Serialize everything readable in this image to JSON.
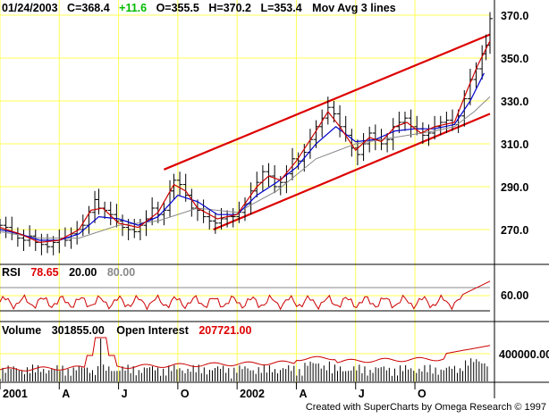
{
  "header": {
    "date": "01/24/2003",
    "close": "C=368.4",
    "change": "+11.6",
    "open": "O=355.5",
    "high": "H=370.2",
    "low": "L=353.4",
    "study": "Mov Avg 3 lines"
  },
  "rsi_header": {
    "label": "RSI",
    "value": "78.65",
    "lower": "20.00",
    "upper": "80.00"
  },
  "volume_header": {
    "vol_label": "Volume",
    "vol_value": "301855.00",
    "oi_label": "Open Interest",
    "oi_value": "207721.00"
  },
  "footer": "Created with SuperCharts by Omega Research © 1997",
  "colors": {
    "grid": "#ffff55",
    "price": "#000000",
    "ma_fast": "#cc0000",
    "ma_mid": "#0000cc",
    "ma_slow": "#888888",
    "channel": "#dd0000",
    "change_text": "#00bb00",
    "red_text": "#dd0000",
    "gray_text": "#888888"
  },
  "chart_data": {
    "type": "line",
    "x_ticks": [
      {
        "label": "2001",
        "month": 0
      },
      {
        "label": "A",
        "month": 3
      },
      {
        "label": "J",
        "month": 6
      },
      {
        "label": "O",
        "month": 9
      },
      {
        "label": "2002",
        "month": 12
      },
      {
        "label": "A",
        "month": 15
      },
      {
        "label": "J",
        "month": 18
      },
      {
        "label": "O",
        "month": 21
      }
    ],
    "x_range": [
      0,
      24.8
    ],
    "price": {
      "yticks": [
        {
          "label": "370.0",
          "value": 370
        },
        {
          "label": "350.0",
          "value": 350
        },
        {
          "label": "330.0",
          "value": 330
        },
        {
          "label": "310.0",
          "value": 310
        },
        {
          "label": "290.0",
          "value": 290
        },
        {
          "label": "270.0",
          "value": 270
        }
      ],
      "closes": [
        [
          0,
          272
        ],
        [
          0.3,
          271
        ],
        [
          0.6,
          268
        ],
        [
          0.9,
          266
        ],
        [
          1.2,
          265
        ],
        [
          1.5,
          267
        ],
        [
          1.8,
          264
        ],
        [
          2.1,
          263
        ],
        [
          2.4,
          262
        ],
        [
          2.7,
          264
        ],
        [
          3.0,
          266
        ],
        [
          3.3,
          265
        ],
        [
          3.6,
          268
        ],
        [
          3.9,
          270
        ],
        [
          4.2,
          272
        ],
        [
          4.5,
          278
        ],
        [
          4.8,
          284
        ],
        [
          5.0,
          280
        ],
        [
          5.3,
          279
        ],
        [
          5.6,
          277
        ],
        [
          5.9,
          274
        ],
        [
          6.2,
          271
        ],
        [
          6.5,
          270
        ],
        [
          6.8,
          269
        ],
        [
          7.1,
          272
        ],
        [
          7.4,
          275
        ],
        [
          7.7,
          280
        ],
        [
          8.0,
          277
        ],
        [
          8.3,
          279
        ],
        [
          8.6,
          288
        ],
        [
          8.8,
          293
        ],
        [
          9.1,
          291
        ],
        [
          9.4,
          286
        ],
        [
          9.7,
          280
        ],
        [
          10.0,
          279
        ],
        [
          10.3,
          276
        ],
        [
          10.6,
          274
        ],
        [
          10.9,
          273
        ],
        [
          11.2,
          275
        ],
        [
          11.5,
          276
        ],
        [
          11.8,
          276
        ],
        [
          12.1,
          278
        ],
        [
          12.4,
          282
        ],
        [
          12.7,
          288
        ],
        [
          13.0,
          292
        ],
        [
          13.3,
          297
        ],
        [
          13.6,
          295
        ],
        [
          13.9,
          290
        ],
        [
          14.2,
          292
        ],
        [
          14.5,
          296
        ],
        [
          14.8,
          303
        ],
        [
          15.1,
          302
        ],
        [
          15.4,
          306
        ],
        [
          15.7,
          312
        ],
        [
          16.0,
          318
        ],
        [
          16.3,
          322
        ],
        [
          16.6,
          327
        ],
        [
          16.9,
          324
        ],
        [
          17.2,
          318
        ],
        [
          17.5,
          314
        ],
        [
          17.8,
          308
        ],
        [
          18.1,
          305
        ],
        [
          18.4,
          310
        ],
        [
          18.7,
          315
        ],
        [
          19.0,
          312
        ],
        [
          19.3,
          310
        ],
        [
          19.6,
          312
        ],
        [
          19.9,
          318
        ],
        [
          20.2,
          320
        ],
        [
          20.5,
          322
        ],
        [
          20.8,
          318
        ],
        [
          21.1,
          317
        ],
        [
          21.4,
          314
        ],
        [
          21.7,
          315
        ],
        [
          22.0,
          318
        ],
        [
          22.3,
          320
        ],
        [
          22.6,
          321
        ],
        [
          22.9,
          319
        ],
        [
          23.2,
          323
        ],
        [
          23.5,
          331
        ],
        [
          23.8,
          340
        ],
        [
          24.1,
          345
        ],
        [
          24.4,
          352
        ],
        [
          24.6,
          356
        ],
        [
          24.8,
          368.4
        ]
      ],
      "ma_fast": [
        [
          0,
          271
        ],
        [
          1,
          268
        ],
        [
          2,
          264
        ],
        [
          3,
          265
        ],
        [
          4,
          270
        ],
        [
          4.6,
          279
        ],
        [
          5.2,
          280
        ],
        [
          6,
          273
        ],
        [
          7,
          271
        ],
        [
          8,
          278
        ],
        [
          8.8,
          291
        ],
        [
          9.4,
          288
        ],
        [
          10,
          280
        ],
        [
          11,
          275
        ],
        [
          12,
          277
        ],
        [
          13,
          290
        ],
        [
          13.6,
          295
        ],
        [
          14.2,
          293
        ],
        [
          15,
          302
        ],
        [
          16,
          316
        ],
        [
          16.6,
          325
        ],
        [
          17.2,
          318
        ],
        [
          18,
          307
        ],
        [
          18.7,
          313
        ],
        [
          19.3,
          311
        ],
        [
          20,
          318
        ],
        [
          20.6,
          320
        ],
        [
          21.3,
          315
        ],
        [
          22,
          318
        ],
        [
          23,
          320
        ],
        [
          23.6,
          334
        ],
        [
          24.2,
          347
        ],
        [
          24.8,
          358
        ]
      ],
      "ma_mid": [
        [
          0,
          270
        ],
        [
          1,
          268
        ],
        [
          2,
          265
        ],
        [
          3,
          265
        ],
        [
          4,
          268
        ],
        [
          5,
          276
        ],
        [
          6,
          275
        ],
        [
          7,
          272
        ],
        [
          8,
          276
        ],
        [
          9,
          286
        ],
        [
          10,
          283
        ],
        [
          11,
          277
        ],
        [
          12,
          277
        ],
        [
          13,
          286
        ],
        [
          14,
          292
        ],
        [
          15,
          299
        ],
        [
          16,
          310
        ],
        [
          17,
          318
        ],
        [
          18,
          311
        ],
        [
          19,
          312
        ],
        [
          20,
          316
        ],
        [
          21,
          317
        ],
        [
          22,
          317
        ],
        [
          23,
          319
        ],
        [
          23.8,
          330
        ],
        [
          24.5,
          343
        ]
      ],
      "ma_slow": [
        [
          0,
          269
        ],
        [
          2,
          266
        ],
        [
          4,
          266
        ],
        [
          6,
          272
        ],
        [
          8,
          274
        ],
        [
          10,
          280
        ],
        [
          12,
          278
        ],
        [
          14,
          288
        ],
        [
          16,
          303
        ],
        [
          18,
          310
        ],
        [
          20,
          313
        ],
        [
          22,
          316
        ],
        [
          23,
          318
        ],
        [
          24,
          325
        ],
        [
          24.8,
          332
        ]
      ],
      "channel_upper": [
        [
          8.3,
          298
        ],
        [
          24.8,
          361
        ]
      ],
      "channel_lower": [
        [
          10.8,
          270
        ],
        [
          24.8,
          324
        ]
      ]
    },
    "rsi": {
      "ylabel": "60.00",
      "yvalue": 60,
      "last": 78.65,
      "levels": [
        20,
        80
      ]
    },
    "volume": {
      "ylabel": "400000.00",
      "yvalue": 400000
    },
    "grid": true
  }
}
